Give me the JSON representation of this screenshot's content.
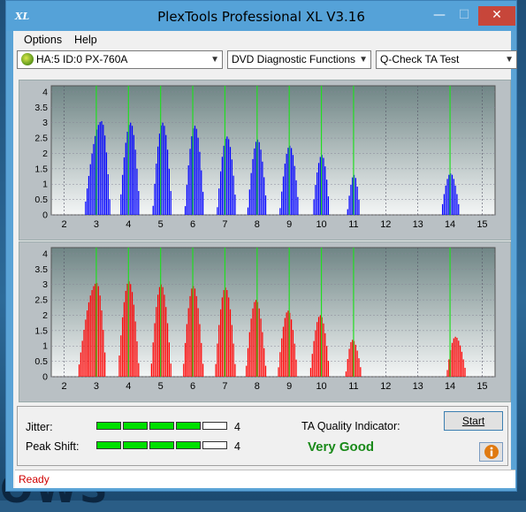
{
  "desktop": {
    "bg_text": "OWS"
  },
  "window": {
    "title": "PlexTools Professional XL V3.16",
    "icon_text": "XL"
  },
  "menu": {
    "options": "Options",
    "help": "Help"
  },
  "toolbar": {
    "drive": "HA:5 ID:0  PX-760A",
    "function": "DVD Diagnostic Functions",
    "test": "Q-Check TA Test"
  },
  "charts": {
    "x_ticks": [
      "2",
      "3",
      "4",
      "5",
      "6",
      "7",
      "8",
      "9",
      "10",
      "11",
      "12",
      "13",
      "14",
      "15"
    ],
    "y_ticks": [
      "0",
      "0.5",
      "1",
      "1.5",
      "2",
      "2.5",
      "3",
      "3.5",
      "4"
    ]
  },
  "chart_data": [
    {
      "type": "area",
      "name": "land-distribution",
      "color": "#0000ff",
      "xlim": [
        1.6,
        15.4
      ],
      "ylim": [
        0,
        4.2
      ],
      "x_ticks": [
        2,
        3,
        4,
        5,
        6,
        7,
        8,
        9,
        10,
        11,
        12,
        13,
        14,
        15
      ],
      "y_ticks": [
        0,
        0.5,
        1,
        1.5,
        2,
        2.5,
        3,
        3.5,
        4
      ],
      "green_markers": [
        3,
        4,
        5,
        6,
        7,
        8,
        9,
        10,
        11,
        14
      ],
      "peaks": [
        {
          "center": 3.15,
          "height": 3.05,
          "left_width": 0.55,
          "right_width": 0.28
        },
        {
          "center": 4.05,
          "height": 3.0,
          "left_width": 0.35,
          "right_width": 0.3
        },
        {
          "center": 5.05,
          "height": 3.0,
          "left_width": 0.32,
          "right_width": 0.3
        },
        {
          "center": 6.05,
          "height": 2.9,
          "left_width": 0.32,
          "right_width": 0.3
        },
        {
          "center": 7.05,
          "height": 2.55,
          "left_width": 0.32,
          "right_width": 0.3
        },
        {
          "center": 8.0,
          "height": 2.45,
          "left_width": 0.32,
          "right_width": 0.3
        },
        {
          "center": 9.0,
          "height": 2.25,
          "left_width": 0.32,
          "right_width": 0.3
        },
        {
          "center": 10.0,
          "height": 1.95,
          "left_width": 0.3,
          "right_width": 0.25
        },
        {
          "center": 11.0,
          "height": 1.3,
          "left_width": 0.22,
          "right_width": 0.2
        },
        {
          "center": 14.0,
          "height": 1.35,
          "left_width": 0.3,
          "right_width": 0.3
        }
      ]
    },
    {
      "type": "area",
      "name": "pit-distribution",
      "color": "#ff0000",
      "xlim": [
        1.6,
        15.4
      ],
      "ylim": [
        0,
        4.2
      ],
      "x_ticks": [
        2,
        3,
        4,
        5,
        6,
        7,
        8,
        9,
        10,
        11,
        12,
        13,
        14,
        15
      ],
      "y_ticks": [
        0,
        0.5,
        1,
        1.5,
        2,
        2.5,
        3,
        3.5,
        4
      ],
      "green_markers": [
        3,
        4,
        5,
        6,
        7,
        8,
        9,
        10,
        11,
        14
      ],
      "peaks": [
        {
          "center": 3.0,
          "height": 3.05,
          "left_width": 0.6,
          "right_width": 0.3
        },
        {
          "center": 4.0,
          "height": 3.1,
          "left_width": 0.35,
          "right_width": 0.33
        },
        {
          "center": 5.0,
          "height": 3.0,
          "left_width": 0.33,
          "right_width": 0.33
        },
        {
          "center": 6.0,
          "height": 2.95,
          "left_width": 0.33,
          "right_width": 0.33
        },
        {
          "center": 7.0,
          "height": 2.9,
          "left_width": 0.33,
          "right_width": 0.33
        },
        {
          "center": 7.95,
          "height": 2.5,
          "left_width": 0.33,
          "right_width": 0.33
        },
        {
          "center": 8.95,
          "height": 2.15,
          "left_width": 0.33,
          "right_width": 0.3
        },
        {
          "center": 9.95,
          "height": 2.0,
          "left_width": 0.33,
          "right_width": 0.3
        },
        {
          "center": 10.95,
          "height": 1.2,
          "left_width": 0.22,
          "right_width": 0.3
        },
        {
          "center": 14.15,
          "height": 1.3,
          "left_width": 0.28,
          "right_width": 0.35
        }
      ]
    }
  ],
  "metrics": {
    "jitter_label": "Jitter:",
    "jitter_value": "4",
    "jitter_level": 4,
    "peak_label": "Peak Shift:",
    "peak_value": "4",
    "peak_level": 4,
    "max_level": 5,
    "ta_label": "TA Quality Indicator:",
    "ta_quality": "Very Good"
  },
  "buttons": {
    "start": "Start",
    "info_icon": "info-icon"
  },
  "status": {
    "text": "Ready"
  }
}
